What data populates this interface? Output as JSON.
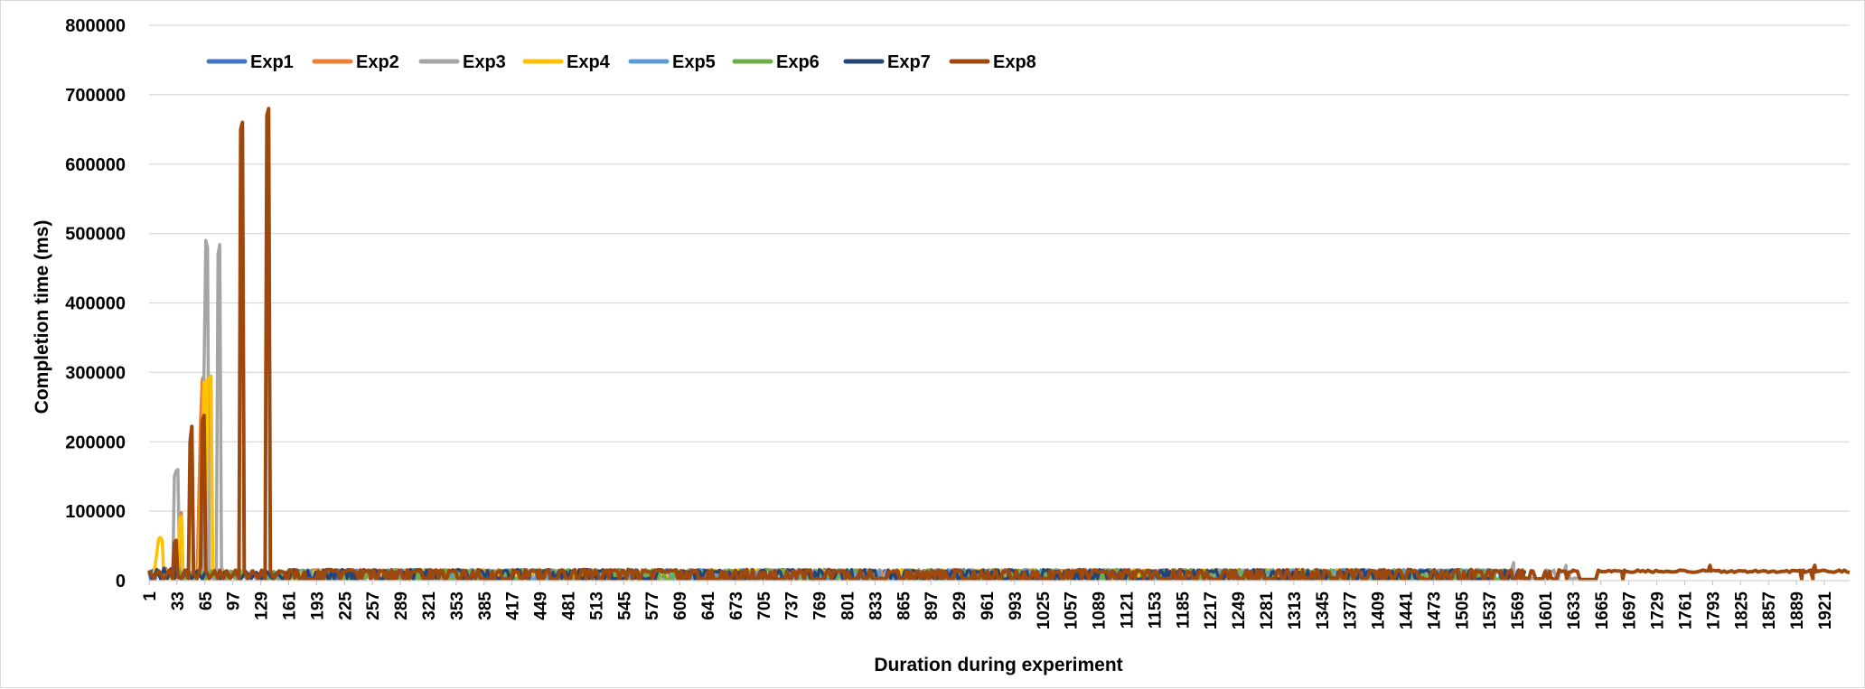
{
  "chart_data": {
    "type": "line",
    "title": "",
    "xlabel": "Duration during experiment",
    "ylabel": "Completion time (ms)",
    "ylim": [
      0,
      800000
    ],
    "y_ticks": [
      0,
      100000,
      200000,
      300000,
      400000,
      500000,
      600000,
      700000,
      800000
    ],
    "xlim": [
      1,
      1950
    ],
    "x_ticks": [
      1,
      33,
      65,
      97,
      129,
      161,
      193,
      225,
      257,
      289,
      321,
      353,
      385,
      417,
      449,
      481,
      513,
      545,
      577,
      609,
      641,
      673,
      705,
      737,
      769,
      801,
      833,
      865,
      897,
      929,
      961,
      993,
      1025,
      1057,
      1089,
      1121,
      1153,
      1185,
      1217,
      1249,
      1281,
      1313,
      1345,
      1377,
      1409,
      1441,
      1473,
      1505,
      1537,
      1569,
      1601,
      1633,
      1665,
      1697,
      1729,
      1761,
      1793,
      1825,
      1857,
      1889,
      1921
    ],
    "grid": true,
    "legend_position": "top-left",
    "series": [
      {
        "name": "Exp1",
        "color": "#4472C4",
        "length": 1540,
        "base": 12000,
        "points": [
          [
            1,
            12000
          ],
          [
            3,
            1500
          ],
          [
            5,
            15000
          ],
          [
            8,
            2000
          ],
          [
            10,
            14000
          ],
          [
            14,
            3000
          ],
          [
            18,
            16000
          ],
          [
            22,
            4000
          ],
          [
            26,
            13000
          ],
          [
            30,
            2000
          ],
          [
            35,
            15000
          ],
          [
            40,
            3000
          ],
          [
            46,
            14000
          ],
          [
            52,
            2500
          ],
          [
            58,
            16000
          ],
          [
            64,
            3000
          ],
          [
            70,
            13000
          ],
          [
            76,
            2000
          ],
          [
            82,
            15000
          ],
          [
            88,
            3000
          ],
          [
            94,
            12000
          ],
          [
            100,
            2000
          ],
          [
            106,
            14000
          ],
          [
            112,
            3000
          ],
          [
            118,
            13000
          ],
          [
            124,
            2000
          ],
          [
            130,
            15000
          ],
          [
            136,
            3000
          ],
          [
            142,
            12000
          ],
          [
            148,
            2000
          ],
          [
            154,
            13000
          ]
        ]
      },
      {
        "name": "Exp2",
        "color": "#ED7D31",
        "length": 1480,
        "base": 12000,
        "points": [
          [
            1,
            14000
          ],
          [
            5,
            3000
          ],
          [
            10,
            15000
          ],
          [
            15,
            2000
          ],
          [
            20,
            18000
          ],
          [
            25,
            4000
          ],
          [
            30,
            20000
          ],
          [
            34,
            3000
          ],
          [
            36,
            95000
          ],
          [
            38,
            98000
          ],
          [
            40,
            5000
          ],
          [
            44,
            15000
          ],
          [
            48,
            3000
          ],
          [
            52,
            14000
          ],
          [
            56,
            4000
          ],
          [
            60,
            230000
          ],
          [
            62,
            290000
          ],
          [
            64,
            295000
          ],
          [
            66,
            20000
          ],
          [
            68,
            5000
          ],
          [
            72,
            15000
          ],
          [
            78,
            3000
          ],
          [
            84,
            14000
          ],
          [
            90,
            2000
          ],
          [
            96,
            13000
          ],
          [
            102,
            3000
          ],
          [
            108,
            14000
          ],
          [
            114,
            2000
          ],
          [
            120,
            13000
          ],
          [
            126,
            3000
          ],
          [
            132,
            12000
          ],
          [
            138,
            2000
          ],
          [
            144,
            13000
          ],
          [
            150,
            2000
          ],
          [
            156,
            12000
          ]
        ]
      },
      {
        "name": "Exp3",
        "color": "#A5A5A5",
        "length": 1640,
        "base": 12000,
        "points": [
          [
            1,
            12000
          ],
          [
            6,
            3000
          ],
          [
            12,
            14000
          ],
          [
            18,
            2000
          ],
          [
            24,
            15000
          ],
          [
            28,
            3000
          ],
          [
            30,
            150000
          ],
          [
            32,
            158000
          ],
          [
            34,
            160000
          ],
          [
            36,
            10000
          ],
          [
            40,
            3000
          ],
          [
            46,
            14000
          ],
          [
            52,
            2000
          ],
          [
            58,
            15000
          ],
          [
            62,
            8000
          ],
          [
            64,
            300000
          ],
          [
            66,
            490000
          ],
          [
            68,
            480000
          ],
          [
            70,
            15000
          ],
          [
            74,
            3000
          ],
          [
            78,
            8000
          ],
          [
            80,
            470000
          ],
          [
            82,
            484000
          ],
          [
            84,
            20000
          ],
          [
            88,
            3000
          ],
          [
            94,
            14000
          ],
          [
            100,
            2000
          ],
          [
            106,
            13000
          ],
          [
            112,
            3000
          ],
          [
            118,
            14000
          ],
          [
            124,
            2000
          ],
          [
            130,
            13000
          ],
          [
            136,
            3000
          ],
          [
            142,
            12000
          ],
          [
            148,
            2000
          ],
          [
            154,
            13000
          ]
        ],
        "late_points": [
          [
            1565,
            26000
          ],
          [
            1567,
            8000
          ],
          [
            1625,
            22000
          ],
          [
            1627,
            8000
          ]
        ]
      },
      {
        "name": "Exp4",
        "color": "#FFC000",
        "length": 1500,
        "base": 12000,
        "points": [
          [
            1,
            12000
          ],
          [
            6,
            3000
          ],
          [
            12,
            60000
          ],
          [
            14,
            62000
          ],
          [
            16,
            58000
          ],
          [
            18,
            5000
          ],
          [
            22,
            14000
          ],
          [
            26,
            3000
          ],
          [
            30,
            15000
          ],
          [
            34,
            3000
          ],
          [
            36,
            90000
          ],
          [
            38,
            92000
          ],
          [
            40,
            5000
          ],
          [
            46,
            14000
          ],
          [
            52,
            2000
          ],
          [
            58,
            15000
          ],
          [
            62,
            200000
          ],
          [
            64,
            285000
          ],
          [
            66,
            10000
          ],
          [
            68,
            290000
          ],
          [
            70,
            292000
          ],
          [
            72,
            295000
          ],
          [
            74,
            20000
          ],
          [
            78,
            3000
          ],
          [
            84,
            14000
          ],
          [
            90,
            2000
          ],
          [
            96,
            13000
          ],
          [
            102,
            3000
          ],
          [
            108,
            14000
          ],
          [
            114,
            2000
          ],
          [
            120,
            13000
          ],
          [
            126,
            3000
          ],
          [
            132,
            12000
          ],
          [
            138,
            2000
          ],
          [
            144,
            13000
          ],
          [
            150,
            2000
          ],
          [
            156,
            12000
          ]
        ]
      },
      {
        "name": "Exp5",
        "color": "#5B9BD5",
        "length": 1560,
        "base": 12000,
        "points": [
          [
            1,
            10000
          ],
          [
            6,
            2000
          ],
          [
            12,
            13000
          ],
          [
            18,
            3000
          ],
          [
            24,
            12000
          ],
          [
            30,
            2000
          ],
          [
            36,
            14000
          ],
          [
            42,
            3000
          ],
          [
            48,
            12000
          ],
          [
            54,
            2000
          ],
          [
            60,
            13000
          ],
          [
            66,
            3000
          ],
          [
            72,
            14000
          ],
          [
            78,
            2000
          ],
          [
            84,
            12000
          ],
          [
            90,
            3000
          ],
          [
            96,
            13000
          ],
          [
            102,
            2000
          ],
          [
            108,
            12000
          ],
          [
            114,
            3000
          ],
          [
            120,
            13000
          ],
          [
            126,
            2000
          ],
          [
            132,
            12000
          ],
          [
            138,
            3000
          ],
          [
            144,
            13000
          ],
          [
            150,
            2000
          ],
          [
            156,
            12000
          ]
        ]
      },
      {
        "name": "Exp6",
        "color": "#70AD47",
        "length": 1560,
        "base": 12000,
        "points": [
          [
            1,
            11000
          ],
          [
            6,
            3000
          ],
          [
            12,
            14000
          ],
          [
            18,
            2000
          ],
          [
            24,
            13000
          ],
          [
            30,
            3000
          ],
          [
            36,
            14000
          ],
          [
            42,
            2000
          ],
          [
            48,
            12000
          ],
          [
            54,
            3000
          ],
          [
            60,
            13000
          ],
          [
            66,
            2000
          ],
          [
            72,
            14000
          ],
          [
            78,
            3000
          ],
          [
            84,
            12000
          ],
          [
            90,
            2000
          ],
          [
            96,
            13000
          ],
          [
            102,
            3000
          ],
          [
            108,
            12000
          ],
          [
            114,
            2000
          ],
          [
            120,
            13000
          ],
          [
            126,
            3000
          ],
          [
            132,
            12000
          ],
          [
            138,
            2000
          ],
          [
            144,
            13000
          ],
          [
            150,
            3000
          ],
          [
            156,
            12000
          ]
        ]
      },
      {
        "name": "Exp7",
        "color": "#264478",
        "length": 1580,
        "base": 12000,
        "points": [
          [
            1,
            13000
          ],
          [
            5,
            2000
          ],
          [
            10,
            16000
          ],
          [
            14,
            3000
          ],
          [
            18,
            18000
          ],
          [
            22,
            3000
          ],
          [
            26,
            17000
          ],
          [
            30,
            3000
          ],
          [
            32,
            42000
          ],
          [
            34,
            8000
          ],
          [
            38,
            2000
          ],
          [
            44,
            15000
          ],
          [
            50,
            3000
          ],
          [
            56,
            14000
          ],
          [
            62,
            2000
          ],
          [
            66,
            15000
          ],
          [
            70,
            3000
          ],
          [
            76,
            14000
          ],
          [
            82,
            2000
          ],
          [
            88,
            13000
          ],
          [
            94,
            3000
          ],
          [
            100,
            12000
          ],
          [
            106,
            2000
          ],
          [
            112,
            13000
          ],
          [
            118,
            3000
          ],
          [
            124,
            12000
          ],
          [
            130,
            2000
          ],
          [
            136,
            13000
          ],
          [
            142,
            3000
          ],
          [
            148,
            12000
          ],
          [
            154,
            2000
          ],
          [
            160,
            12000
          ]
        ]
      },
      {
        "name": "Exp8",
        "color": "#9E480E",
        "length": 1950,
        "base": 12000,
        "points": [
          [
            1,
            15000
          ],
          [
            6,
            3000
          ],
          [
            12,
            14000
          ],
          [
            18,
            2000
          ],
          [
            24,
            15000
          ],
          [
            28,
            3000
          ],
          [
            30,
            55000
          ],
          [
            32,
            58000
          ],
          [
            34,
            5000
          ],
          [
            38,
            3000
          ],
          [
            42,
            15000
          ],
          [
            46,
            3000
          ],
          [
            48,
            200000
          ],
          [
            50,
            222000
          ],
          [
            52,
            10000
          ],
          [
            56,
            3000
          ],
          [
            60,
            20000
          ],
          [
            62,
            230000
          ],
          [
            64,
            238000
          ],
          [
            66,
            15000
          ],
          [
            70,
            3000
          ],
          [
            76,
            14000
          ],
          [
            80,
            3000
          ],
          [
            82,
            15000
          ],
          [
            86,
            3000
          ],
          [
            90,
            14000
          ],
          [
            94,
            3000
          ],
          [
            100,
            15000
          ],
          [
            104,
            3000
          ],
          [
            106,
            650000
          ],
          [
            108,
            660000
          ],
          [
            110,
            15000
          ],
          [
            114,
            3000
          ],
          [
            120,
            14000
          ],
          [
            126,
            3000
          ],
          [
            130,
            15000
          ],
          [
            134,
            3000
          ],
          [
            136,
            670000
          ],
          [
            138,
            680000
          ],
          [
            140,
            15000
          ],
          [
            144,
            3000
          ],
          [
            150,
            14000
          ],
          [
            156,
            12000
          ]
        ],
        "late_points": [
          [
            1650,
            1500
          ],
          [
            1690,
            1500
          ],
          [
            1692,
            15000
          ],
          [
            1790,
            22000
          ],
          [
            1792,
            15000
          ],
          [
            1895,
            2000
          ],
          [
            1897,
            15000
          ],
          [
            1908,
            2000
          ],
          [
            1910,
            22000
          ],
          [
            1912,
            15000
          ]
        ]
      }
    ]
  }
}
